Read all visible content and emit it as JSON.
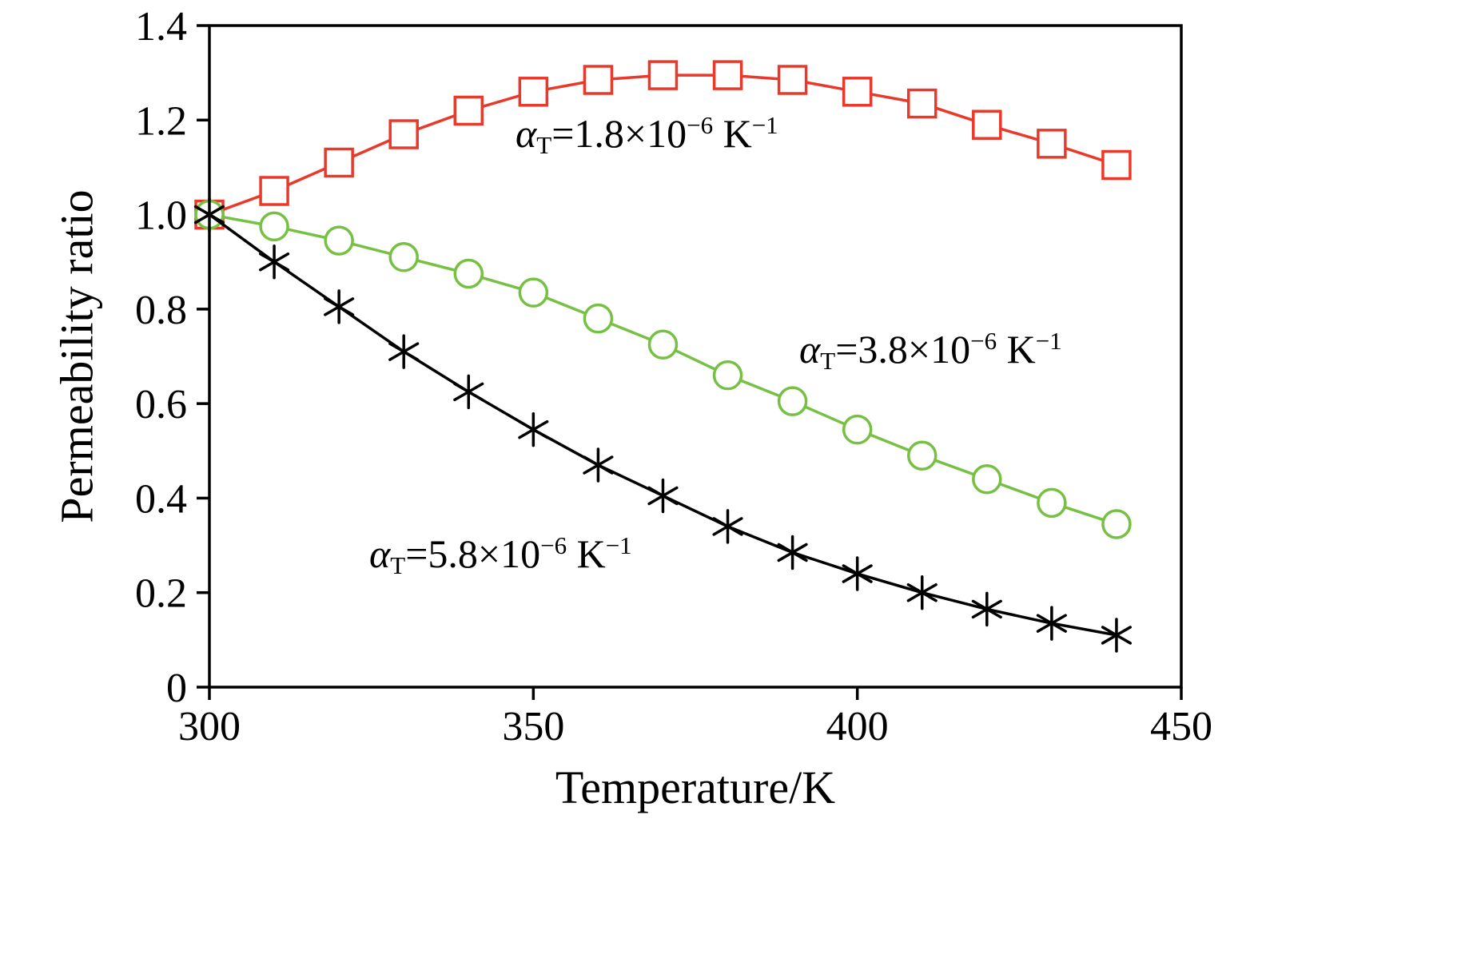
{
  "chart_data": {
    "type": "line",
    "title": "",
    "xlabel": "Temperature/K",
    "ylabel": "Permeability ratio",
    "xlim": [
      300,
      450
    ],
    "ylim": [
      0,
      1.4
    ],
    "x_ticks": [
      300,
      350,
      400,
      450
    ],
    "x_tick_labels": [
      "300",
      "350",
      "400",
      "450"
    ],
    "y_ticks": [
      0,
      0.2,
      0.4,
      0.6,
      0.8,
      1.0,
      1.2,
      1.4
    ],
    "y_tick_labels": [
      "0",
      "0.2",
      "0.4",
      "0.6",
      "0.8",
      "1.0",
      "1.2",
      "1.4"
    ],
    "grid": false,
    "legend_position": "none",
    "x": [
      300,
      310,
      320,
      330,
      340,
      350,
      360,
      370,
      380,
      390,
      400,
      410,
      420,
      430,
      440
    ],
    "series": [
      {
        "name": "alpha_T = 1.8e-6 K^-1",
        "marker": "square",
        "color": "#e8392b",
        "values": [
          1.0,
          1.05,
          1.11,
          1.17,
          1.22,
          1.26,
          1.285,
          1.295,
          1.295,
          1.285,
          1.26,
          1.235,
          1.19,
          1.15,
          1.105
        ]
      },
      {
        "name": "alpha_T = 3.8e-6 K^-1",
        "marker": "circle",
        "color": "#76c043",
        "values": [
          1.0,
          0.975,
          0.945,
          0.91,
          0.875,
          0.835,
          0.78,
          0.725,
          0.66,
          0.605,
          0.545,
          0.49,
          0.44,
          0.39,
          0.345
        ]
      },
      {
        "name": "alpha_T = 5.8e-6 K^-1",
        "marker": "asterisk",
        "color": "#000000",
        "values": [
          1.0,
          0.9,
          0.805,
          0.71,
          0.625,
          0.545,
          0.47,
          0.405,
          0.34,
          0.285,
          0.24,
          0.2,
          0.165,
          0.135,
          0.11
        ]
      }
    ],
    "annotations": [
      {
        "alpha": "α",
        "sub": "T",
        "eq": "=1.8×10",
        "exp": "−6",
        "unit": " K",
        "unit_exp": "−1"
      },
      {
        "alpha": "α",
        "sub": "T",
        "eq": "=3.8×10",
        "exp": "−6",
        "unit": " K",
        "unit_exp": "−1"
      },
      {
        "alpha": "α",
        "sub": "T",
        "eq": "=5.8×10",
        "exp": "−6",
        "unit": " K",
        "unit_exp": "−1"
      }
    ],
    "axis_color": "#000000"
  }
}
